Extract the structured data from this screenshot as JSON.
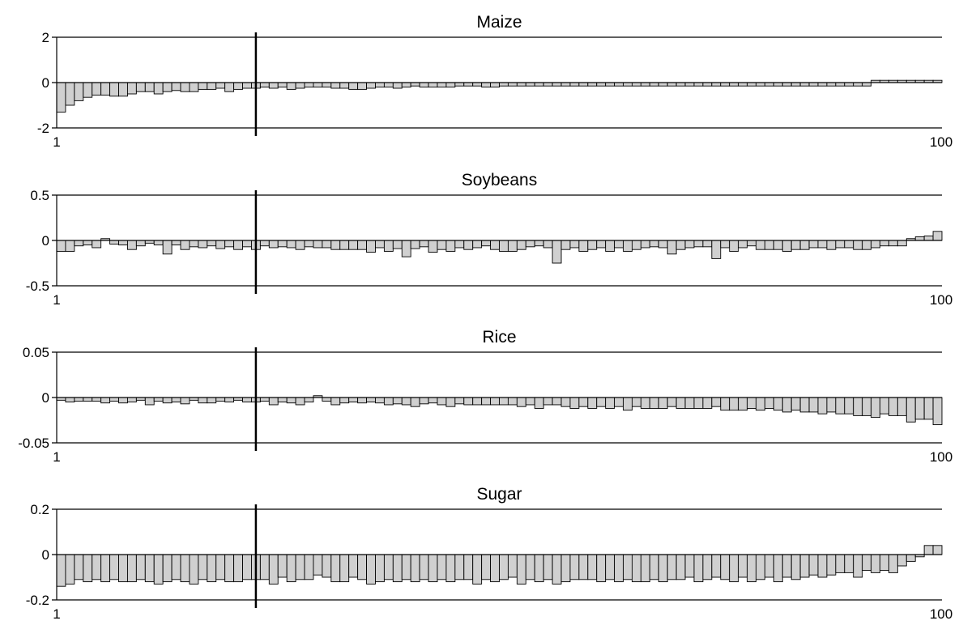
{
  "chart_data": [
    {
      "type": "bar",
      "title": "Maize",
      "ylim": [
        -2,
        2
      ],
      "yticks": [
        {
          "value": 2,
          "label": "2"
        },
        {
          "value": 0,
          "label": "0"
        },
        {
          "value": -2,
          "label": "-2"
        }
      ],
      "xticks": [
        {
          "value": 1,
          "label": "1"
        },
        {
          "value": 100,
          "label": "100"
        }
      ],
      "marker_x": 23,
      "grid": false,
      "values": [
        -1.3,
        -1.0,
        -0.8,
        -0.65,
        -0.55,
        -0.55,
        -0.6,
        -0.6,
        -0.5,
        -0.4,
        -0.4,
        -0.5,
        -0.4,
        -0.35,
        -0.4,
        -0.4,
        -0.3,
        -0.3,
        -0.25,
        -0.4,
        -0.3,
        -0.25,
        -0.25,
        -0.2,
        -0.25,
        -0.2,
        -0.3,
        -0.25,
        -0.2,
        -0.2,
        -0.2,
        -0.25,
        -0.25,
        -0.3,
        -0.3,
        -0.25,
        -0.2,
        -0.2,
        -0.25,
        -0.2,
        -0.15,
        -0.2,
        -0.2,
        -0.2,
        -0.2,
        -0.15,
        -0.15,
        -0.15,
        -0.2,
        -0.2,
        -0.15,
        -0.15,
        -0.15,
        -0.15,
        -0.15,
        -0.15,
        -0.15,
        -0.15,
        -0.15,
        -0.15,
        -0.15,
        -0.15,
        -0.15,
        -0.15,
        -0.15,
        -0.15,
        -0.15,
        -0.15,
        -0.15,
        -0.15,
        -0.15,
        -0.15,
        -0.15,
        -0.15,
        -0.15,
        -0.15,
        -0.15,
        -0.15,
        -0.15,
        -0.15,
        -0.15,
        -0.15,
        -0.15,
        -0.15,
        -0.15,
        -0.15,
        -0.15,
        -0.15,
        -0.15,
        -0.15,
        -0.15,
        -0.15,
        0.1,
        0.1,
        0.1,
        0.1,
        0.1,
        0.1,
        0.1,
        0.1
      ]
    },
    {
      "type": "bar",
      "title": "Soybeans",
      "ylim": [
        -0.5,
        0.5
      ],
      "yticks": [
        {
          "value": 0.5,
          "label": "0.5"
        },
        {
          "value": 0,
          "label": "0"
        },
        {
          "value": -0.5,
          "label": "-0.5"
        }
      ],
      "xticks": [
        {
          "value": 1,
          "label": "1"
        },
        {
          "value": 100,
          "label": "100"
        }
      ],
      "marker_x": 23,
      "grid": false,
      "values": [
        -0.12,
        -0.12,
        -0.06,
        -0.05,
        -0.08,
        0.02,
        -0.04,
        -0.05,
        -0.1,
        -0.06,
        -0.03,
        -0.05,
        -0.15,
        -0.05,
        -0.1,
        -0.07,
        -0.08,
        -0.06,
        -0.09,
        -0.07,
        -0.1,
        -0.07,
        -0.1,
        -0.06,
        -0.08,
        -0.07,
        -0.08,
        -0.1,
        -0.07,
        -0.08,
        -0.08,
        -0.1,
        -0.1,
        -0.1,
        -0.1,
        -0.13,
        -0.08,
        -0.12,
        -0.09,
        -0.18,
        -0.09,
        -0.07,
        -0.13,
        -0.1,
        -0.12,
        -0.08,
        -0.1,
        -0.08,
        -0.06,
        -0.1,
        -0.12,
        -0.12,
        -0.1,
        -0.07,
        -0.06,
        -0.08,
        -0.25,
        -0.1,
        -0.08,
        -0.12,
        -0.1,
        -0.08,
        -0.12,
        -0.08,
        -0.12,
        -0.1,
        -0.08,
        -0.07,
        -0.08,
        -0.15,
        -0.1,
        -0.08,
        -0.07,
        -0.07,
        -0.2,
        -0.08,
        -0.12,
        -0.08,
        -0.06,
        -0.1,
        -0.1,
        -0.1,
        -0.12,
        -0.1,
        -0.1,
        -0.08,
        -0.08,
        -0.1,
        -0.08,
        -0.08,
        -0.1,
        -0.1,
        -0.08,
        -0.06,
        -0.06,
        -0.06,
        0.02,
        0.04,
        0.05,
        0.1
      ]
    },
    {
      "type": "bar",
      "title": "Rice",
      "ylim": [
        -0.05,
        0.05
      ],
      "yticks": [
        {
          "value": 0.05,
          "label": "0.05"
        },
        {
          "value": 0,
          "label": "0"
        },
        {
          "value": -0.05,
          "label": "-0.05"
        }
      ],
      "xticks": [
        {
          "value": 1,
          "label": "1"
        },
        {
          "value": 100,
          "label": "100"
        }
      ],
      "marker_x": 23,
      "grid": false,
      "values": [
        -0.003,
        -0.005,
        -0.004,
        -0.004,
        -0.004,
        -0.006,
        -0.004,
        -0.006,
        -0.005,
        -0.003,
        -0.008,
        -0.004,
        -0.006,
        -0.005,
        -0.007,
        -0.003,
        -0.006,
        -0.006,
        -0.004,
        -0.005,
        -0.003,
        -0.005,
        -0.005,
        -0.004,
        -0.008,
        -0.005,
        -0.006,
        -0.008,
        -0.005,
        0.002,
        -0.004,
        -0.008,
        -0.006,
        -0.005,
        -0.006,
        -0.005,
        -0.006,
        -0.008,
        -0.007,
        -0.008,
        -0.01,
        -0.007,
        -0.006,
        -0.008,
        -0.01,
        -0.007,
        -0.008,
        -0.008,
        -0.008,
        -0.008,
        -0.008,
        -0.008,
        -0.01,
        -0.008,
        -0.012,
        -0.008,
        -0.008,
        -0.01,
        -0.012,
        -0.01,
        -0.012,
        -0.01,
        -0.012,
        -0.01,
        -0.014,
        -0.01,
        -0.012,
        -0.012,
        -0.012,
        -0.01,
        -0.012,
        -0.012,
        -0.012,
        -0.012,
        -0.01,
        -0.014,
        -0.014,
        -0.014,
        -0.012,
        -0.014,
        -0.012,
        -0.014,
        -0.016,
        -0.014,
        -0.016,
        -0.016,
        -0.018,
        -0.016,
        -0.018,
        -0.018,
        -0.02,
        -0.02,
        -0.022,
        -0.018,
        -0.02,
        -0.02,
        -0.027,
        -0.024,
        -0.024,
        -0.03
      ]
    },
    {
      "type": "bar",
      "title": "Sugar",
      "ylim": [
        -0.2,
        0.2
      ],
      "yticks": [
        {
          "value": 0.2,
          "label": "0.2"
        },
        {
          "value": 0,
          "label": "0"
        },
        {
          "value": -0.2,
          "label": "-0.2"
        }
      ],
      "xticks": [
        {
          "value": 1,
          "label": "1"
        },
        {
          "value": 100,
          "label": "100"
        }
      ],
      "marker_x": 23,
      "grid": false,
      "values": [
        -0.14,
        -0.13,
        -0.11,
        -0.12,
        -0.11,
        -0.12,
        -0.11,
        -0.12,
        -0.12,
        -0.11,
        -0.12,
        -0.13,
        -0.12,
        -0.11,
        -0.12,
        -0.13,
        -0.11,
        -0.12,
        -0.11,
        -0.12,
        -0.12,
        -0.11,
        -0.11,
        -0.11,
        -0.13,
        -0.1,
        -0.12,
        -0.11,
        -0.11,
        -0.09,
        -0.1,
        -0.12,
        -0.12,
        -0.1,
        -0.11,
        -0.13,
        -0.12,
        -0.11,
        -0.12,
        -0.11,
        -0.12,
        -0.11,
        -0.12,
        -0.11,
        -0.12,
        -0.11,
        -0.11,
        -0.13,
        -0.11,
        -0.12,
        -0.11,
        -0.1,
        -0.13,
        -0.11,
        -0.12,
        -0.11,
        -0.13,
        -0.12,
        -0.11,
        -0.11,
        -0.11,
        -0.12,
        -0.11,
        -0.12,
        -0.11,
        -0.12,
        -0.12,
        -0.11,
        -0.12,
        -0.11,
        -0.11,
        -0.1,
        -0.12,
        -0.11,
        -0.1,
        -0.11,
        -0.12,
        -0.1,
        -0.12,
        -0.11,
        -0.1,
        -0.12,
        -0.1,
        -0.11,
        -0.1,
        -0.09,
        -0.1,
        -0.09,
        -0.08,
        -0.08,
        -0.1,
        -0.07,
        -0.08,
        -0.07,
        -0.08,
        -0.05,
        -0.03,
        -0.01,
        0.04,
        0.04
      ]
    }
  ]
}
